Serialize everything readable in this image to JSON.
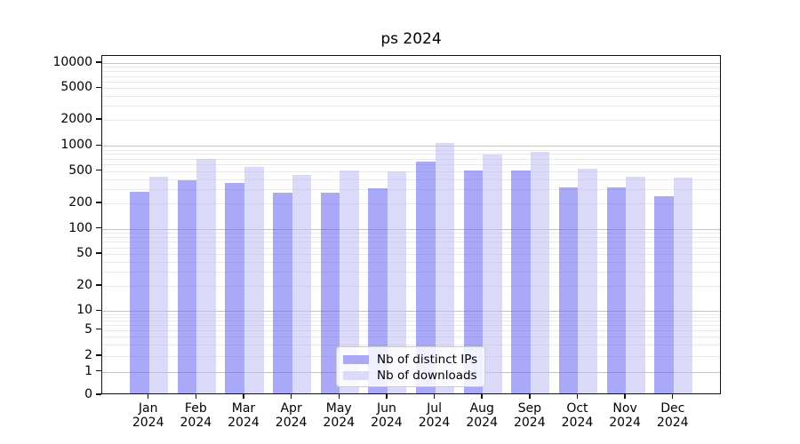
{
  "title": "ps 2024",
  "legend": {
    "items": [
      {
        "label": "Nb of distinct IPs",
        "color": "#a9a9f7"
      },
      {
        "label": "Nb of downloads",
        "color": "#dbdbf9"
      }
    ]
  },
  "y_axis": {
    "tick_labels": [
      "10000",
      "5000",
      "2000",
      "1000",
      "500",
      "200",
      "100",
      "50",
      "20",
      "10",
      "5",
      "2",
      "1",
      "0"
    ]
  },
  "x_axis": {
    "months": [
      "Jan",
      "Feb",
      "Mar",
      "Apr",
      "May",
      "Jun",
      "Jul",
      "Aug",
      "Sep",
      "Oct",
      "Nov",
      "Dec"
    ],
    "year": "2024"
  },
  "colors": {
    "grid_major": "#c3c3c3",
    "grid_minor": "#e9e9e9",
    "spine": "#111111",
    "bar_ips_fill": "rgba(99,99,240,0.55)",
    "bar_downloads_fill": "rgba(190,190,244,0.55)"
  },
  "chart_data": {
    "type": "bar",
    "title": "ps 2024",
    "categories": [
      "Jan 2024",
      "Feb 2024",
      "Mar 2024",
      "Apr 2024",
      "May 2024",
      "Jun 2024",
      "Jul 2024",
      "Aug 2024",
      "Sep 2024",
      "Oct 2024",
      "Nov 2024",
      "Dec 2024"
    ],
    "series": [
      {
        "name": "Nb of distinct IPs",
        "color": "#a9a9f7",
        "values": [
          265,
          365,
          340,
          258,
          258,
          293,
          620,
          487,
          490,
          297,
          300,
          233
        ]
      },
      {
        "name": "Nb of downloads",
        "color": "#dbdbf9",
        "values": [
          410,
          665,
          530,
          430,
          480,
          475,
          1040,
          760,
          810,
          507,
          405,
          400
        ]
      }
    ],
    "yscale": "symlog",
    "y_ticks": [
      0,
      1,
      2,
      5,
      10,
      20,
      50,
      100,
      200,
      500,
      1000,
      2000,
      5000,
      10000
    ],
    "ylim": [
      0,
      13000
    ],
    "grid": true,
    "legend_position": "lower center"
  }
}
